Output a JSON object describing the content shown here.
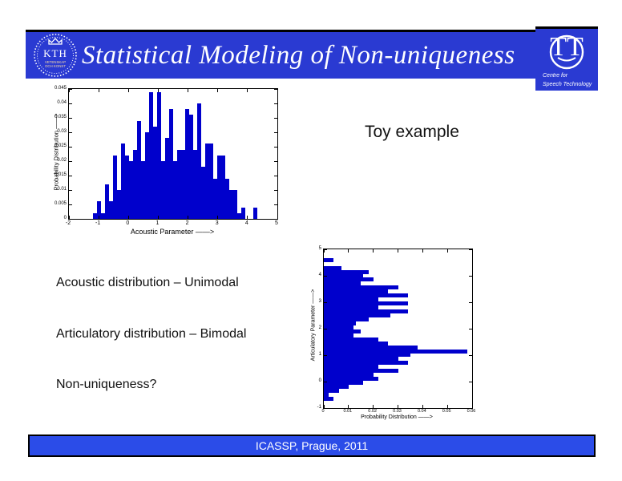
{
  "slide": {
    "header": {
      "title": "Statistical Modeling of Non-uniqueness",
      "bg_color": "#2a3ad2",
      "kth_logo": {
        "text": "KTH",
        "motto_line1": "VETENSKAP",
        "motto_line2": "OCH KONST"
      },
      "tt_logo": {
        "monogram": "TT",
        "line1": "Centre for",
        "line2": "Speech Technology"
      }
    },
    "body": {
      "heading": "Toy example",
      "bullets": [
        "Acoustic distribution – Unimodal",
        "Articulatory distribution – Bimodal",
        "Non-uniqueness?"
      ]
    },
    "footer": {
      "text": "ICASSP, Prague,  2011",
      "bg_color": "#2b4ce8"
    }
  },
  "chart_data": [
    {
      "type": "bar",
      "orientation": "vertical",
      "title": "",
      "xlabel": "Acoustic Parameter ——>",
      "ylabel": "Probability Distribution ——>",
      "xlim": [
        -2,
        5
      ],
      "ylim": [
        0,
        0.045
      ],
      "xticks": [
        -2,
        -1,
        0,
        1,
        2,
        3,
        4,
        5
      ],
      "yticks": [
        0,
        0.005,
        0.01,
        0.015,
        0.02,
        0.025,
        0.03,
        0.035,
        0.04,
        0.045
      ],
      "grid": false,
      "bar_color": "#0000cc",
      "bin_start": -1.2,
      "bin_width": 0.135,
      "values": [
        0.002,
        0.006,
        0.002,
        0.012,
        0.006,
        0.022,
        0.01,
        0.026,
        0.022,
        0.02,
        0.024,
        0.034,
        0.02,
        0.03,
        0.044,
        0.032,
        0.044,
        0.02,
        0.028,
        0.038,
        0.02,
        0.024,
        0.024,
        0.038,
        0.036,
        0.024,
        0.04,
        0.018,
        0.026,
        0.026,
        0.014,
        0.022,
        0.022,
        0.014,
        0.01,
        0.01,
        0.002,
        0.004,
        0,
        0,
        0.004
      ]
    },
    {
      "type": "bar",
      "orientation": "horizontal",
      "title": "",
      "xlabel": "Probability Distribution ——>",
      "ylabel": "Articulatory Parameter ——>",
      "xlim": [
        0,
        0.06
      ],
      "ylim": [
        -1,
        5
      ],
      "xticks": [
        0,
        0.01,
        0.02,
        0.03,
        0.04,
        0.05,
        0.06
      ],
      "yticks": [
        -1,
        0,
        1,
        2,
        3,
        4,
        5
      ],
      "grid": false,
      "bar_color": "#0000cc",
      "bin_start": -0.725,
      "bin_width": 0.15,
      "values": [
        0.004,
        0.002,
        0.006,
        0.01,
        0.016,
        0.022,
        0.02,
        0.03,
        0.022,
        0.034,
        0.03,
        0.035,
        0.058,
        0.038,
        0.026,
        0.022,
        0.012,
        0.015,
        0.012,
        0.013,
        0.018,
        0.027,
        0.034,
        0.022,
        0.034,
        0.022,
        0.034,
        0.026,
        0.03,
        0.015,
        0.02,
        0.016,
        0.018,
        0.007,
        0,
        0.004
      ]
    }
  ]
}
